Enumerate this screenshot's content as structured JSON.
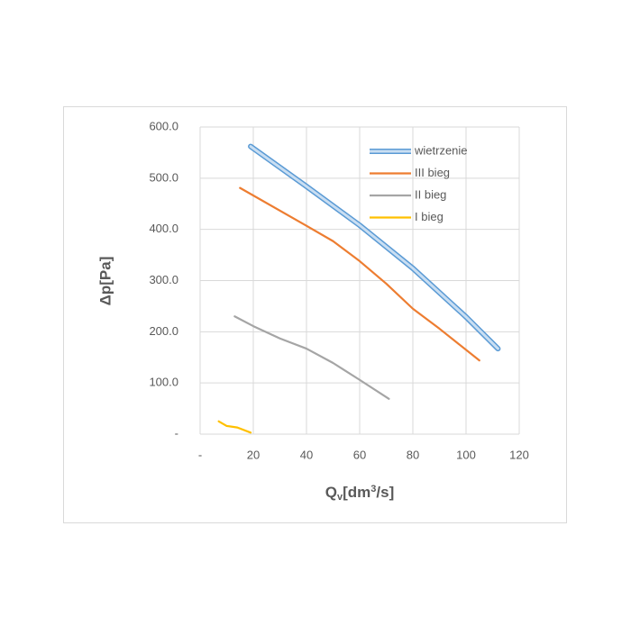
{
  "chart_data": {
    "type": "line",
    "x_label": {
      "base": "Q",
      "sub": "v",
      "mid": "[dm",
      "sup": "3",
      "end": "/s]"
    },
    "y_label": "Δp[Pa]",
    "xlim": [
      0,
      120
    ],
    "xticks": [
      {
        "value": 0,
        "label": "-"
      },
      20,
      40,
      60,
      80,
      100,
      120
    ],
    "ylim": [
      0,
      600
    ],
    "yticks": [
      {
        "value": 0,
        "label": "-"
      },
      {
        "value": 100,
        "label": "100.0"
      },
      {
        "value": 200,
        "label": "200.0"
      },
      {
        "value": 300,
        "label": "300.0"
      },
      {
        "value": 400,
        "label": "400.0"
      },
      {
        "value": 500,
        "label": "500.0"
      },
      {
        "value": 600,
        "label": "600.0"
      }
    ],
    "grid": true,
    "legend": "top-right",
    "series": [
      {
        "name": "wietrzenie",
        "color": "#5b9bd5",
        "inner_color": "#c9def2",
        "x": [
          19,
          40,
          60,
          80,
          100,
          112
        ],
        "values": [
          562,
          484,
          408,
          324,
          229,
          167
        ]
      },
      {
        "name": "III bieg",
        "color": "#ed7d31",
        "x": [
          15,
          40,
          50,
          60,
          70,
          80,
          90,
          105
        ],
        "values": [
          481,
          407,
          377,
          338,
          294,
          245,
          206,
          144
        ]
      },
      {
        "name": "II bieg",
        "color": "#a5a5a5",
        "x": [
          13,
          20,
          30,
          40,
          50,
          60,
          71
        ],
        "values": [
          230,
          211,
          187,
          167,
          139,
          106,
          69
        ]
      },
      {
        "name": "I bieg",
        "color": "#ffc000",
        "x": [
          7,
          10,
          14,
          19
        ],
        "values": [
          25,
          16,
          13,
          3
        ]
      }
    ]
  }
}
